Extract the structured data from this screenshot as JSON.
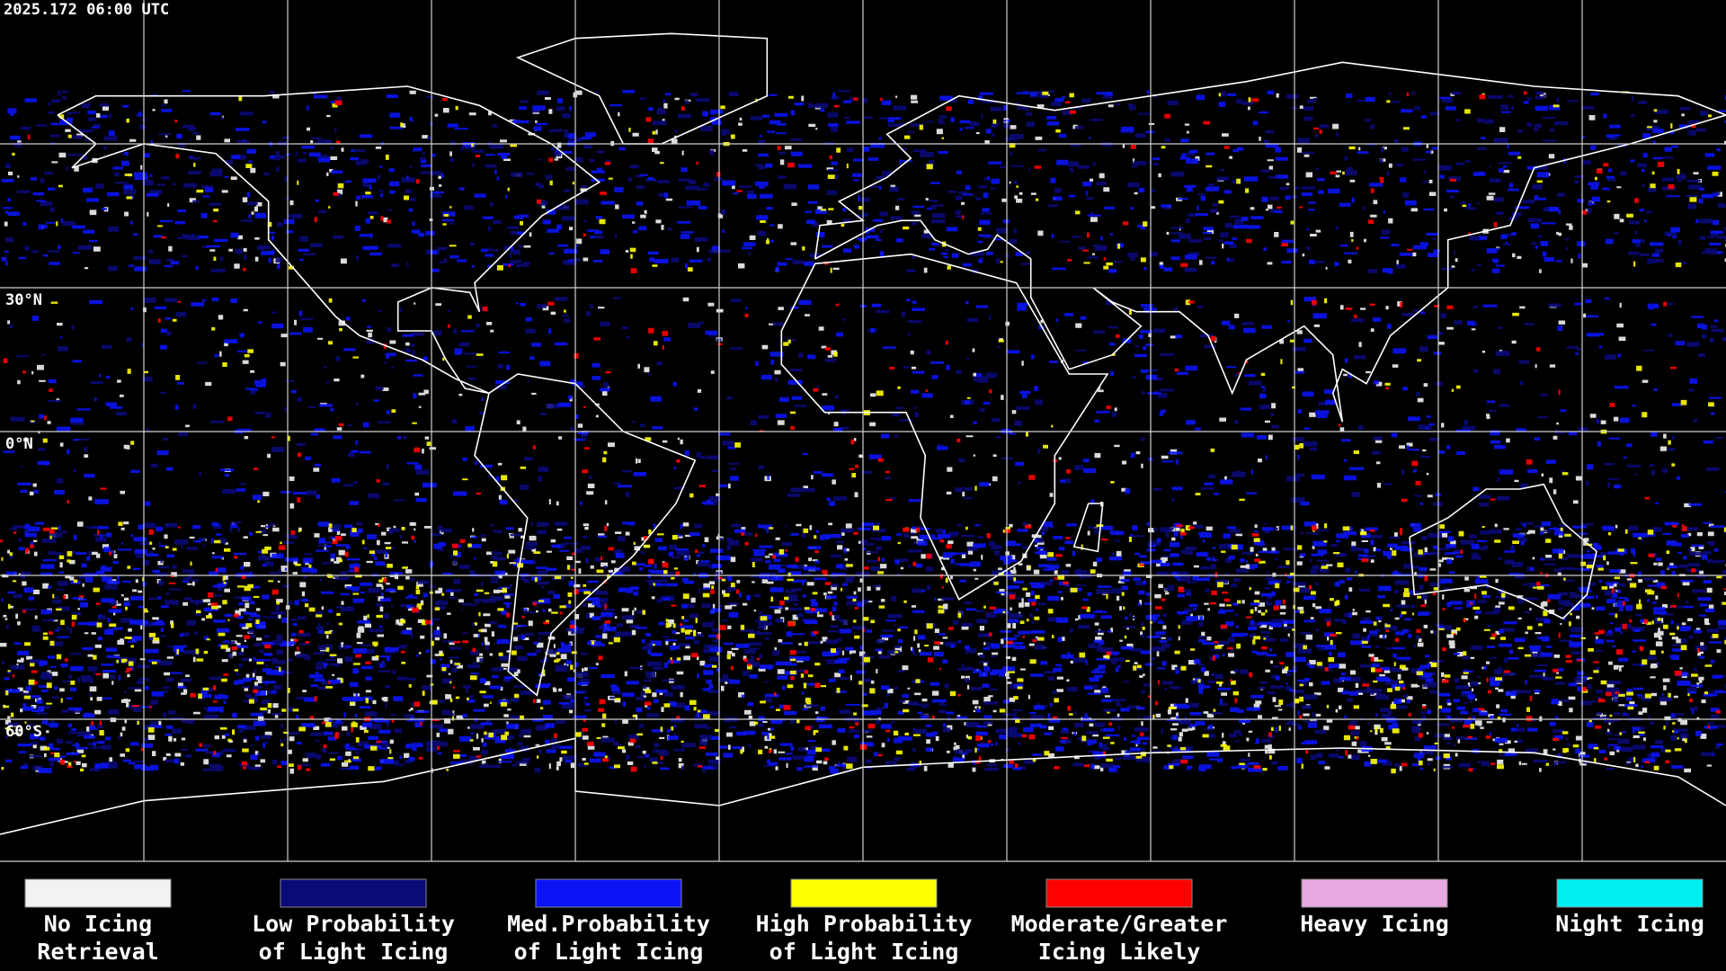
{
  "timestamp": "2025.172 06:00 UTC",
  "latitude_labels": [
    "30°N",
    "0°N",
    "60°S"
  ],
  "legend": [
    {
      "color": "#f2f2f2",
      "label": [
        "No Icing",
        "Retrieval"
      ]
    },
    {
      "color": "#0a0a78",
      "label": [
        "Low Probability",
        "of Light Icing"
      ]
    },
    {
      "color": "#0a14f5",
      "label": [
        "Med.Probability",
        "of Light Icing"
      ]
    },
    {
      "color": "#ffff00",
      "label": [
        "High Probability",
        "of Light Icing"
      ]
    },
    {
      "color": "#ff0000",
      "label": [
        "Moderate/Greater",
        "Icing Likely"
      ]
    },
    {
      "color": "#e8a8e0",
      "label": [
        "Heavy Icing",
        ""
      ]
    },
    {
      "color": "#00f0f0",
      "label": [
        "Night Icing",
        ""
      ]
    }
  ]
}
